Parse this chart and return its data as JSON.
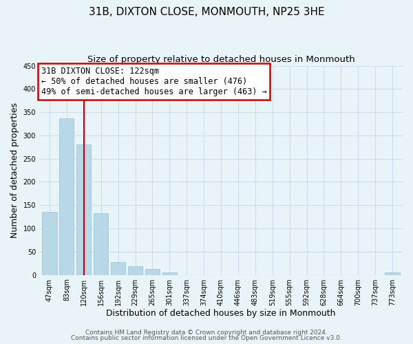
{
  "title": "31B, DIXTON CLOSE, MONMOUTH, NP25 3HE",
  "subtitle": "Size of property relative to detached houses in Monmouth",
  "xlabel": "Distribution of detached houses by size in Monmouth",
  "ylabel": "Number of detached properties",
  "bar_labels": [
    "47sqm",
    "83sqm",
    "120sqm",
    "156sqm",
    "192sqm",
    "229sqm",
    "265sqm",
    "301sqm",
    "337sqm",
    "374sqm",
    "410sqm",
    "446sqm",
    "483sqm",
    "519sqm",
    "555sqm",
    "592sqm",
    "628sqm",
    "664sqm",
    "700sqm",
    "737sqm",
    "773sqm"
  ],
  "bar_heights": [
    135,
    337,
    281,
    133,
    27,
    18,
    13,
    6,
    0,
    0,
    0,
    0,
    0,
    0,
    0,
    0,
    0,
    0,
    0,
    0,
    5
  ],
  "bar_color": "#b8d8e8",
  "bar_edge_color": "#9fc8dc",
  "vline_x": 2,
  "vline_color": "#cc0000",
  "annotation_box_text": "31B DIXTON CLOSE: 122sqm\n← 50% of detached houses are smaller (476)\n49% of semi-detached houses are larger (463) →",
  "box_edge_color": "#cc0000",
  "ylim": [
    0,
    450
  ],
  "yticks": [
    0,
    50,
    100,
    150,
    200,
    250,
    300,
    350,
    400,
    450
  ],
  "grid_color": "#ccddee",
  "bg_color": "#e8f4f8",
  "footer_line1": "Contains HM Land Registry data © Crown copyright and database right 2024.",
  "footer_line2": "Contains public sector information licensed under the Open Government Licence v3.0.",
  "title_fontsize": 11,
  "subtitle_fontsize": 9.5,
  "xlabel_fontsize": 9,
  "ylabel_fontsize": 9,
  "tick_fontsize": 7,
  "annot_fontsize": 8.5,
  "footer_fontsize": 6.5
}
